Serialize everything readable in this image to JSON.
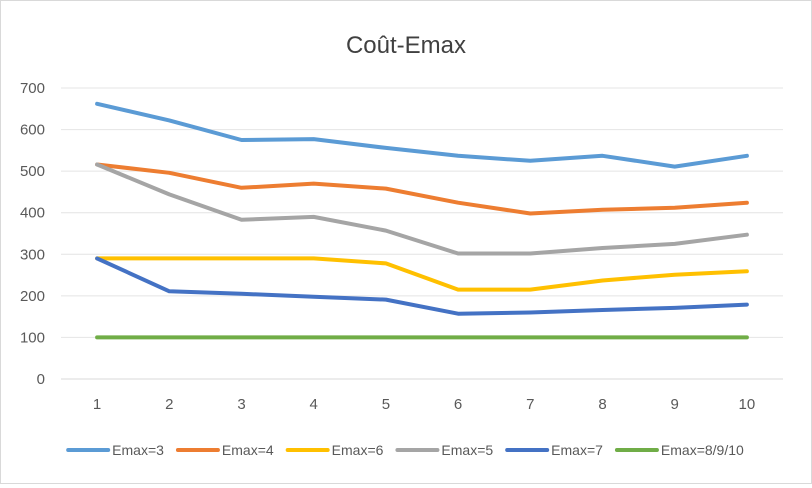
{
  "chart_data": {
    "type": "line",
    "title": "Coût-Emax",
    "xlabel": "",
    "ylabel": "",
    "categories": [
      "1",
      "2",
      "3",
      "4",
      "5",
      "6",
      "7",
      "8",
      "9",
      "10"
    ],
    "ylim": [
      0,
      700
    ],
    "yticks": [
      "0",
      "100",
      "200",
      "300",
      "400",
      "500",
      "600",
      "700"
    ],
    "grid": true,
    "legend_position": "bottom",
    "series": [
      {
        "name": "Emax=3",
        "color": "#5b9bd5",
        "values": [
          662,
          622,
          575,
          577,
          556,
          537,
          525,
          537,
          511,
          537
        ]
      },
      {
        "name": "Emax=4",
        "color": "#ed7d31",
        "values": [
          516,
          496,
          460,
          470,
          458,
          424,
          398,
          407,
          412,
          424
        ]
      },
      {
        "name": "Emax=6",
        "color": "#ffc000",
        "values": [
          290,
          290,
          290,
          290,
          278,
          215,
          215,
          237,
          251,
          259
        ]
      },
      {
        "name": "Emax=5",
        "color": "#a5a5a5",
        "values": [
          516,
          444,
          383,
          390,
          357,
          302,
          302,
          315,
          325,
          347
        ]
      },
      {
        "name": "Emax=7",
        "color": "#4472c4",
        "values": [
          290,
          211,
          205,
          198,
          191,
          157,
          160,
          166,
          171,
          179
        ]
      },
      {
        "name": "Emax=8/9/10",
        "color": "#70ad47",
        "values": [
          100,
          100,
          100,
          100,
          100,
          100,
          100,
          100,
          100,
          100
        ]
      }
    ]
  }
}
